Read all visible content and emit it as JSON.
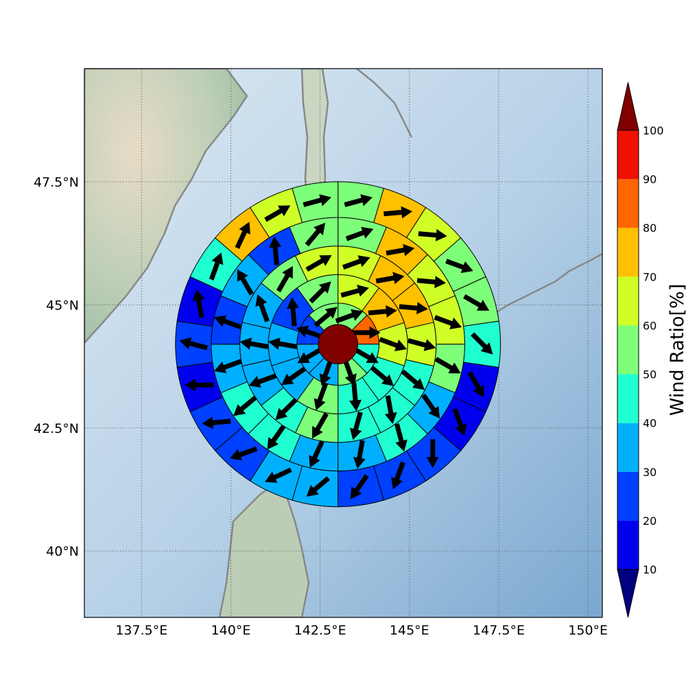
{
  "map": {
    "lon_range": [
      135.9,
      150.4
    ],
    "lat_range": [
      38.65,
      49.8
    ],
    "x_ticks": [
      {
        "value": 137.5,
        "label": "137.5°E"
      },
      {
        "value": 140.0,
        "label": "140°E"
      },
      {
        "value": 142.5,
        "label": "142.5°E"
      },
      {
        "value": 145.0,
        "label": "145°E"
      },
      {
        "value": 147.5,
        "label": "147.5°E"
      },
      {
        "value": 150.0,
        "label": "150°E"
      }
    ],
    "y_ticks": [
      {
        "value": 40.0,
        "label": "40°N"
      },
      {
        "value": 42.5,
        "label": "42.5°N"
      },
      {
        "value": 45.0,
        "label": "45°N"
      },
      {
        "value": 47.5,
        "label": "47.5°N"
      }
    ],
    "grid": true,
    "center": {
      "lon": 143.0,
      "lat": 44.2
    }
  },
  "colorbar": {
    "title": "Wind Ratio[%]",
    "ticks": [
      10,
      20,
      30,
      40,
      50,
      60,
      70,
      80,
      90,
      100
    ],
    "bins": [
      {
        "from": 10,
        "to": 20,
        "color": "#0000ee"
      },
      {
        "from": 20,
        "to": 30,
        "color": "#0040ff"
      },
      {
        "from": 30,
        "to": 40,
        "color": "#00b0ff"
      },
      {
        "from": 40,
        "to": 50,
        "color": "#20ffd0"
      },
      {
        "from": 50,
        "to": 60,
        "color": "#7dff7a"
      },
      {
        "from": 60,
        "to": 70,
        "color": "#d0ff27"
      },
      {
        "from": 70,
        "to": 80,
        "color": "#ffc000"
      },
      {
        "from": 80,
        "to": 90,
        "color": "#ff6600"
      },
      {
        "from": 90,
        "to": 100,
        "color": "#ee1100"
      }
    ],
    "under_color": "#000080",
    "over_color": "#800000"
  },
  "center_value": 100,
  "rings": [
    {
      "inner_radius_deg": 0.55,
      "outer_radius_deg": 1.15,
      "sectors": [
        {
          "value": 55,
          "direction": 70
        },
        {
          "value": 85,
          "direction": 90
        },
        {
          "value": 45,
          "direction": 120
        },
        {
          "value": 55,
          "direction": 160
        },
        {
          "value": 35,
          "direction": 200
        },
        {
          "value": 35,
          "direction": 240
        },
        {
          "value": 25,
          "direction": 290
        },
        {
          "value": 55,
          "direction": 50
        }
      ]
    },
    {
      "inner_radius_deg": 1.15,
      "outer_radius_deg": 1.95,
      "sectors": [
        {
          "value": 65,
          "direction": 75
        },
        {
          "value": 75,
          "direction": 85
        },
        {
          "value": 65,
          "direction": 110
        },
        {
          "value": 45,
          "direction": 130
        },
        {
          "value": 45,
          "direction": 175
        },
        {
          "value": 55,
          "direction": 200
        },
        {
          "value": 35,
          "direction": 235
        },
        {
          "value": 35,
          "direction": 280
        },
        {
          "value": 25,
          "direction": 355
        },
        {
          "value": 55,
          "direction": 45
        }
      ]
    },
    {
      "inner_radius_deg": 1.95,
      "outer_radius_deg": 2.75,
      "sectors": [
        {
          "value": 65,
          "direction": 70
        },
        {
          "value": 75,
          "direction": 80
        },
        {
          "value": 75,
          "direction": 95
        },
        {
          "value": 65,
          "direction": 105
        },
        {
          "value": 45,
          "direction": 130
        },
        {
          "value": 45,
          "direction": 170
        },
        {
          "value": 45,
          "direction": 195
        },
        {
          "value": 55,
          "direction": 210
        },
        {
          "value": 45,
          "direction": 225
        },
        {
          "value": 35,
          "direction": 250
        },
        {
          "value": 35,
          "direction": 280
        },
        {
          "value": 35,
          "direction": 340
        },
        {
          "value": 55,
          "direction": 30
        },
        {
          "value": 65,
          "direction": 60
        }
      ]
    },
    {
      "inner_radius_deg": 2.75,
      "outer_radius_deg": 3.55,
      "sectors": [
        {
          "value": 55,
          "direction": 70
        },
        {
          "value": 75,
          "direction": 80
        },
        {
          "value": 65,
          "direction": 95
        },
        {
          "value": 65,
          "direction": 110
        },
        {
          "value": 55,
          "direction": 120
        },
        {
          "value": 35,
          "direction": 145
        },
        {
          "value": 45,
          "direction": 165
        },
        {
          "value": 35,
          "direction": 190
        },
        {
          "value": 35,
          "direction": 205
        },
        {
          "value": 45,
          "direction": 215
        },
        {
          "value": 45,
          "direction": 230
        },
        {
          "value": 35,
          "direction": 250
        },
        {
          "value": 25,
          "direction": 290
        },
        {
          "value": 35,
          "direction": 330
        },
        {
          "value": 25,
          "direction": 355
        },
        {
          "value": 55,
          "direction": 40
        }
      ]
    },
    {
      "inner_radius_deg": 3.55,
      "outer_radius_deg": 4.55,
      "sectors": [
        {
          "value": 55,
          "direction": 75
        },
        {
          "value": 75,
          "direction": 85
        },
        {
          "value": 65,
          "direction": 95
        },
        {
          "value": 55,
          "direction": 110
        },
        {
          "value": 55,
          "direction": 120
        },
        {
          "value": 45,
          "direction": 135
        },
        {
          "value": 15,
          "direction": 150
        },
        {
          "value": 15,
          "direction": 160
        },
        {
          "value": 25,
          "direction": 180
        },
        {
          "value": 25,
          "direction": 200
        },
        {
          "value": 25,
          "direction": 215
        },
        {
          "value": 35,
          "direction": 230
        },
        {
          "value": 35,
          "direction": 245
        },
        {
          "value": 25,
          "direction": 250
        },
        {
          "value": 25,
          "direction": 265
        },
        {
          "value": 15,
          "direction": 270
        },
        {
          "value": 25,
          "direction": 285
        },
        {
          "value": 15,
          "direction": 350
        },
        {
          "value": 45,
          "direction": 20
        },
        {
          "value": 75,
          "direction": 25
        },
        {
          "value": 65,
          "direction": 60
        },
        {
          "value": 55,
          "direction": 75
        }
      ]
    }
  ]
}
